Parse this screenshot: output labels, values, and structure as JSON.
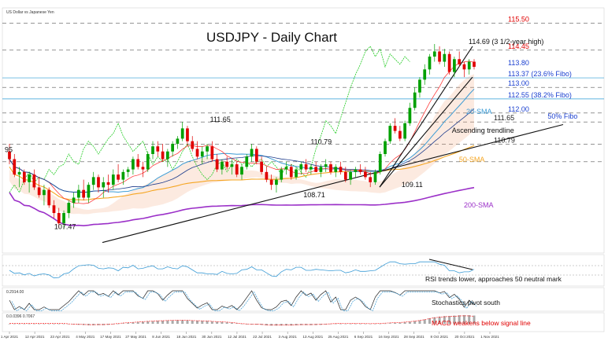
{
  "header": {
    "instrument": "US Dollar vs Japanese Yen",
    "title": "USDJPY - Daily Chart"
  },
  "colors": {
    "background": "#ffffff",
    "candle_up": "#00a000",
    "candle_down": "#e00000",
    "sma20": "#3a9bd5",
    "sma50": "#f5a623",
    "sma200": "#9b30c8",
    "ichimoku_tenkan": "#ff2a2a",
    "ichimoku_kijun": "#1e3c8c",
    "chikou": "#22cc22",
    "cloud": "#f0a070",
    "trendline": "#111111",
    "level_red": "#e00000",
    "level_blue": "#1a3fd0",
    "level_dark": "#222222",
    "fibo_line": "#2a9bd5",
    "rsi_line": "#3a9bd5",
    "stoch_k": "#222222",
    "stoch_d": "#3a9bd5",
    "macd_hist": "#aaaaaa",
    "macd_signal": "#ff2a2a"
  },
  "chart_data": {
    "type": "line",
    "subtype": "candlestick",
    "title": "USDJPY - Daily Chart",
    "x_ticks": [
      "1 Apr 2021",
      "12 Apr 2021",
      "23 Apr 2021",
      "4 May 2021",
      "17 May 2021",
      "27 May 2021",
      "8 Jun 2021",
      "18 Jun 2021",
      "30 Jun 2021",
      "12 Jul 2021",
      "22 Jul 2021",
      "3 Aug 2021",
      "13 Aug 2021",
      "25 Aug 2021",
      "6 Sep 2021",
      "16 Sep 2021",
      "28 Sep 2021",
      "8 Oct 2021",
      "20 Oct 2021",
      "1 Nov 2021"
    ],
    "price_range": [
      106.6,
      116.1
    ],
    "levels": [
      {
        "price": 115.5,
        "label": "115.50",
        "color": "red",
        "style": "dashed"
      },
      {
        "price": 114.45,
        "label": "114.45",
        "color": "red",
        "style": "dashed"
      },
      {
        "price": 113.8,
        "label": "113.80",
        "color": "blue",
        "style": "none"
      },
      {
        "price": 113.37,
        "label": "113.37 (23.6% Fibo)",
        "color": "blue",
        "style": "solid"
      },
      {
        "price": 113.0,
        "label": "113.00",
        "color": "blue",
        "style": "dashed"
      },
      {
        "price": 112.55,
        "label": "112.55 (38.2% Fibo)",
        "color": "blue",
        "style": "solid"
      },
      {
        "price": 112.0,
        "label": "112.00",
        "color": "blue",
        "style": "dashed"
      },
      {
        "price": 111.65,
        "label": "111.65",
        "color": "dark",
        "style": "dashed"
      },
      {
        "price": 110.79,
        "label": "110.79",
        "color": "dark",
        "style": "dashed"
      },
      {
        "price": 110.1,
        "label": "",
        "color": "dark",
        "style": "dashed"
      }
    ],
    "annotations": [
      {
        "text": "114.69 (3 1/2-year high)",
        "price": 114.69,
        "date_index": 19.5
      },
      {
        "text": "111.65",
        "price": 111.65,
        "date_index": 8.7
      },
      {
        "text": "110.79",
        "price": 110.79,
        "date_index": 12.9
      },
      {
        "text": "108.71",
        "price": 108.71,
        "date_index": 12.6
      },
      {
        "text": "109.11",
        "price": 109.11,
        "date_index": 16.7
      },
      {
        "text": "107.47",
        "price": 107.47,
        "date_index": 2.2
      },
      {
        "text": "95",
        "price": 110.48,
        "date_index": 0.0
      },
      {
        "text": "20-SMA",
        "price": 111.97,
        "date_index": 19.4
      },
      {
        "text": "Ascending trendline",
        "price": 111.22,
        "date_index": 18.8
      },
      {
        "text": "50% Fibo",
        "price": 111.78,
        "date_index": 22.8
      },
      {
        "text": "50-SMA",
        "price": 110.1,
        "date_index": 19.1
      },
      {
        "text": "200-SMA",
        "price": 108.32,
        "date_index": 19.3
      }
    ],
    "candles": {
      "start_index": 0,
      "step": 0.1923,
      "ohlc": []
    },
    "ohlc_seed": [
      [
        110.5,
        110.8,
        110.0,
        110.2
      ],
      [
        110.2,
        110.4,
        109.5,
        109.6
      ],
      [
        109.6,
        109.9,
        109.1,
        109.7
      ],
      [
        109.7,
        109.8,
        109.2,
        109.3
      ],
      [
        109.3,
        109.7,
        108.9,
        109.6
      ],
      [
        109.6,
        109.8,
        109.0,
        109.1
      ],
      [
        109.1,
        109.5,
        108.7,
        108.8
      ],
      [
        108.8,
        109.2,
        108.4,
        109.0
      ],
      [
        109.0,
        109.1,
        108.3,
        108.4
      ],
      [
        108.4,
        108.6,
        107.9,
        108.1
      ],
      [
        108.1,
        108.3,
        107.5,
        107.7
      ],
      [
        107.7,
        108.2,
        107.47,
        108.1
      ],
      [
        108.1,
        108.6,
        107.9,
        108.5
      ],
      [
        108.5,
        108.9,
        108.3,
        108.7
      ],
      [
        108.7,
        109.2,
        108.5,
        109.0
      ],
      [
        109.0,
        109.4,
        108.6,
        108.7
      ],
      [
        108.7,
        109.3,
        108.5,
        109.2
      ],
      [
        109.2,
        109.7,
        109.0,
        109.5
      ],
      [
        109.5,
        109.6,
        108.9,
        109.1
      ],
      [
        109.1,
        109.5,
        108.7,
        109.3
      ],
      [
        109.3,
        109.6,
        108.9,
        109.2
      ],
      [
        109.2,
        109.8,
        109.0,
        109.6
      ],
      [
        109.6,
        110.0,
        109.3,
        109.4
      ],
      [
        109.4,
        109.8,
        109.2,
        109.7
      ],
      [
        109.7,
        109.9,
        109.5,
        109.8
      ],
      [
        109.8,
        110.3,
        109.6,
        110.2
      ],
      [
        110.2,
        110.4,
        109.8,
        109.9
      ],
      [
        109.9,
        110.1,
        109.5,
        109.8
      ],
      [
        109.8,
        110.5,
        109.7,
        110.4
      ],
      [
        110.4,
        110.9,
        110.2,
        110.7
      ],
      [
        110.7,
        110.9,
        110.3,
        110.5
      ],
      [
        110.5,
        110.8,
        110.1,
        110.2
      ],
      [
        110.2,
        110.6,
        109.9,
        110.5
      ],
      [
        110.5,
        110.9,
        110.3,
        110.8
      ],
      [
        110.8,
        111.1,
        110.6,
        111.0
      ],
      [
        111.0,
        111.65,
        110.9,
        111.4
      ],
      [
        111.4,
        111.5,
        110.7,
        110.9
      ],
      [
        110.9,
        111.1,
        110.5,
        110.6
      ],
      [
        110.6,
        110.9,
        110.2,
        110.3
      ],
      [
        110.3,
        110.7,
        110.0,
        110.5
      ],
      [
        110.5,
        110.8,
        110.2,
        110.7
      ],
      [
        110.7,
        110.9,
        110.1,
        110.2
      ],
      [
        110.2,
        110.4,
        109.7,
        109.8
      ],
      [
        109.8,
        110.2,
        109.6,
        110.1
      ],
      [
        110.1,
        110.3,
        109.8,
        109.9
      ],
      [
        109.9,
        110.2,
        109.6,
        110.0
      ],
      [
        110.0,
        110.1,
        109.5,
        109.6
      ],
      [
        109.6,
        110.0,
        109.4,
        109.9
      ],
      [
        109.9,
        110.4,
        109.8,
        110.3
      ],
      [
        110.3,
        110.79,
        110.1,
        110.6
      ],
      [
        110.6,
        110.7,
        110.0,
        110.1
      ],
      [
        110.1,
        110.3,
        109.6,
        109.7
      ],
      [
        109.7,
        109.9,
        109.3,
        109.4
      ],
      [
        109.4,
        109.6,
        109.0,
        109.2
      ],
      [
        109.2,
        109.5,
        108.9,
        109.4
      ],
      [
        109.4,
        109.9,
        109.3,
        109.8
      ],
      [
        109.8,
        110.1,
        109.6,
        109.9
      ],
      [
        109.9,
        110.0,
        109.4,
        109.5
      ],
      [
        109.5,
        109.9,
        109.4,
        109.8
      ],
      [
        109.8,
        110.1,
        109.6,
        110.0
      ],
      [
        110.0,
        110.2,
        109.7,
        109.8
      ],
      [
        109.8,
        110.0,
        109.6,
        109.9
      ],
      [
        109.9,
        110.1,
        109.7,
        109.7
      ],
      [
        109.7,
        110.0,
        109.5,
        109.9
      ],
      [
        109.9,
        110.2,
        109.7,
        110.0
      ],
      [
        110.0,
        110.1,
        109.6,
        109.7
      ],
      [
        109.7,
        110.0,
        109.5,
        109.9
      ],
      [
        109.9,
        110.1,
        109.6,
        109.7
      ],
      [
        109.7,
        109.9,
        109.3,
        109.4
      ],
      [
        109.4,
        109.8,
        109.2,
        109.7
      ],
      [
        109.7,
        109.9,
        109.5,
        109.8
      ],
      [
        109.8,
        110.0,
        109.6,
        109.7
      ],
      [
        109.7,
        109.9,
        109.4,
        109.5
      ],
      [
        109.5,
        109.7,
        109.11,
        109.3
      ],
      [
        109.3,
        109.8,
        109.2,
        109.7
      ],
      [
        109.7,
        110.5,
        109.6,
        110.4
      ],
      [
        110.4,
        111.0,
        110.3,
        110.9
      ],
      [
        110.9,
        111.6,
        110.8,
        111.5
      ],
      [
        111.5,
        111.8,
        111.2,
        111.3
      ],
      [
        111.3,
        111.5,
        110.9,
        111.0
      ],
      [
        111.0,
        111.7,
        110.9,
        111.6
      ],
      [
        111.6,
        112.4,
        111.5,
        112.2
      ],
      [
        112.2,
        113.0,
        112.1,
        112.8
      ],
      [
        112.8,
        113.4,
        112.6,
        113.3
      ],
      [
        113.3,
        113.9,
        113.1,
        113.7
      ],
      [
        113.7,
        114.3,
        113.5,
        114.2
      ],
      [
        114.2,
        114.69,
        114.0,
        114.4
      ],
      [
        114.4,
        114.6,
        113.9,
        114.0
      ],
      [
        114.0,
        114.5,
        113.8,
        114.3
      ],
      [
        114.3,
        114.4,
        113.5,
        113.6
      ],
      [
        113.6,
        114.2,
        113.4,
        114.1
      ],
      [
        114.1,
        114.4,
        113.8,
        113.9
      ],
      [
        113.9,
        114.0,
        113.4,
        113.7
      ],
      [
        113.7,
        114.1,
        113.5,
        114.0
      ],
      [
        114.0,
        114.1,
        113.7,
        113.8
      ]
    ],
    "indicator_labels": {
      "rsi": "RSI trends lower, approaches 50 neutral mark",
      "stoch": "Stochastics pivot south",
      "macd": "MACD weakens below signal line"
    },
    "panel_values": {
      "stoch": "0.2914.00",
      "macd": "0.0.0396 0.7067"
    }
  }
}
